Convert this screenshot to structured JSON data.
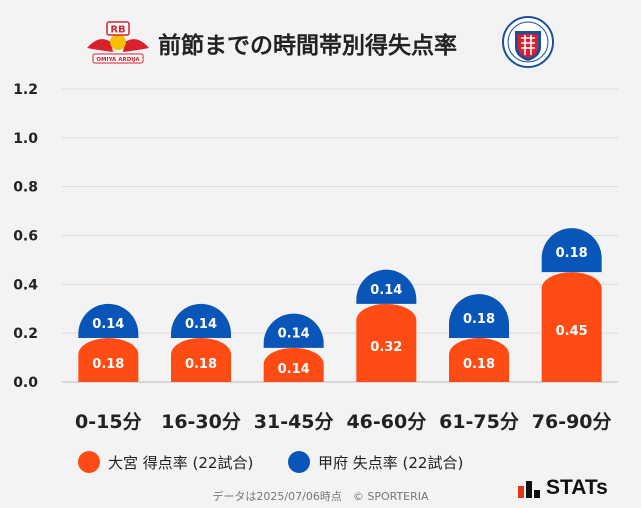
{
  "header": {
    "title": "前節までの時間帯別得失点率",
    "left_logo_text": "RB",
    "left_logo_subtext": "OMIYA ARDIJA"
  },
  "chart_data": {
    "type": "bar",
    "stacked": true,
    "categories": [
      "0-15分",
      "16-30分",
      "31-45分",
      "46-60分",
      "61-75分",
      "76-90分"
    ],
    "series": [
      {
        "name": "大宮 得点率 (22試合)",
        "color": "#ff4b14",
        "values": [
          0.18,
          0.18,
          0.14,
          0.32,
          0.18,
          0.45
        ]
      },
      {
        "name": "甲府 失点率 (22試合)",
        "color": "#0a55b8",
        "values": [
          0.14,
          0.14,
          0.14,
          0.14,
          0.18,
          0.18
        ]
      }
    ],
    "ylim": [
      0,
      1.2
    ],
    "yticks": [
      "0.0",
      "0.2",
      "0.4",
      "0.6",
      "0.8",
      "1.0",
      "1.2"
    ],
    "grid": true,
    "legend_position": "bottom"
  },
  "footnote": "データは2025/07/06時点　© SPORTERIA",
  "brand": {
    "text": "STATs",
    "accent_color": "#e8331a"
  }
}
